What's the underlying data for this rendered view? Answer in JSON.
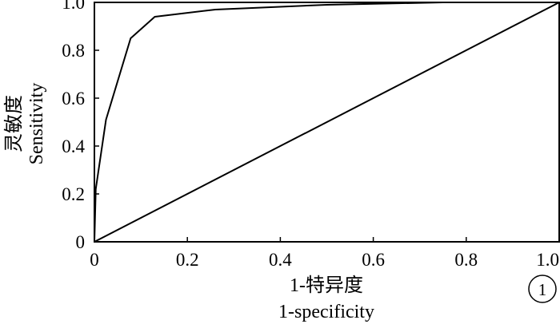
{
  "chart_data": {
    "type": "line",
    "xlabel": "1-特异度",
    "xlabel_en": "1-specificity",
    "ylabel": "灵敏度",
    "ylabel_en": "Sensitivity",
    "xlim": [
      0,
      1
    ],
    "ylim": [
      0,
      1
    ],
    "x_ticks": [
      "0",
      "0.2",
      "0.4",
      "0.6",
      "0.8",
      "1.0"
    ],
    "y_ticks": [
      "0",
      "0.2",
      "0.4",
      "0.6",
      "0.8",
      "1.0"
    ],
    "grid": false,
    "series": [
      {
        "x": [
          0,
          0.003,
          0.025,
          0.078,
          0.13,
          0.26,
          0.5,
          0.75,
          1.0
        ],
        "y": [
          0,
          0.22,
          0.51,
          0.85,
          0.94,
          0.97,
          0.99,
          1.0,
          1.0
        ]
      },
      {
        "x": [
          0,
          1
        ],
        "y": [
          0,
          1
        ]
      }
    ]
  },
  "panel_marker": "1"
}
